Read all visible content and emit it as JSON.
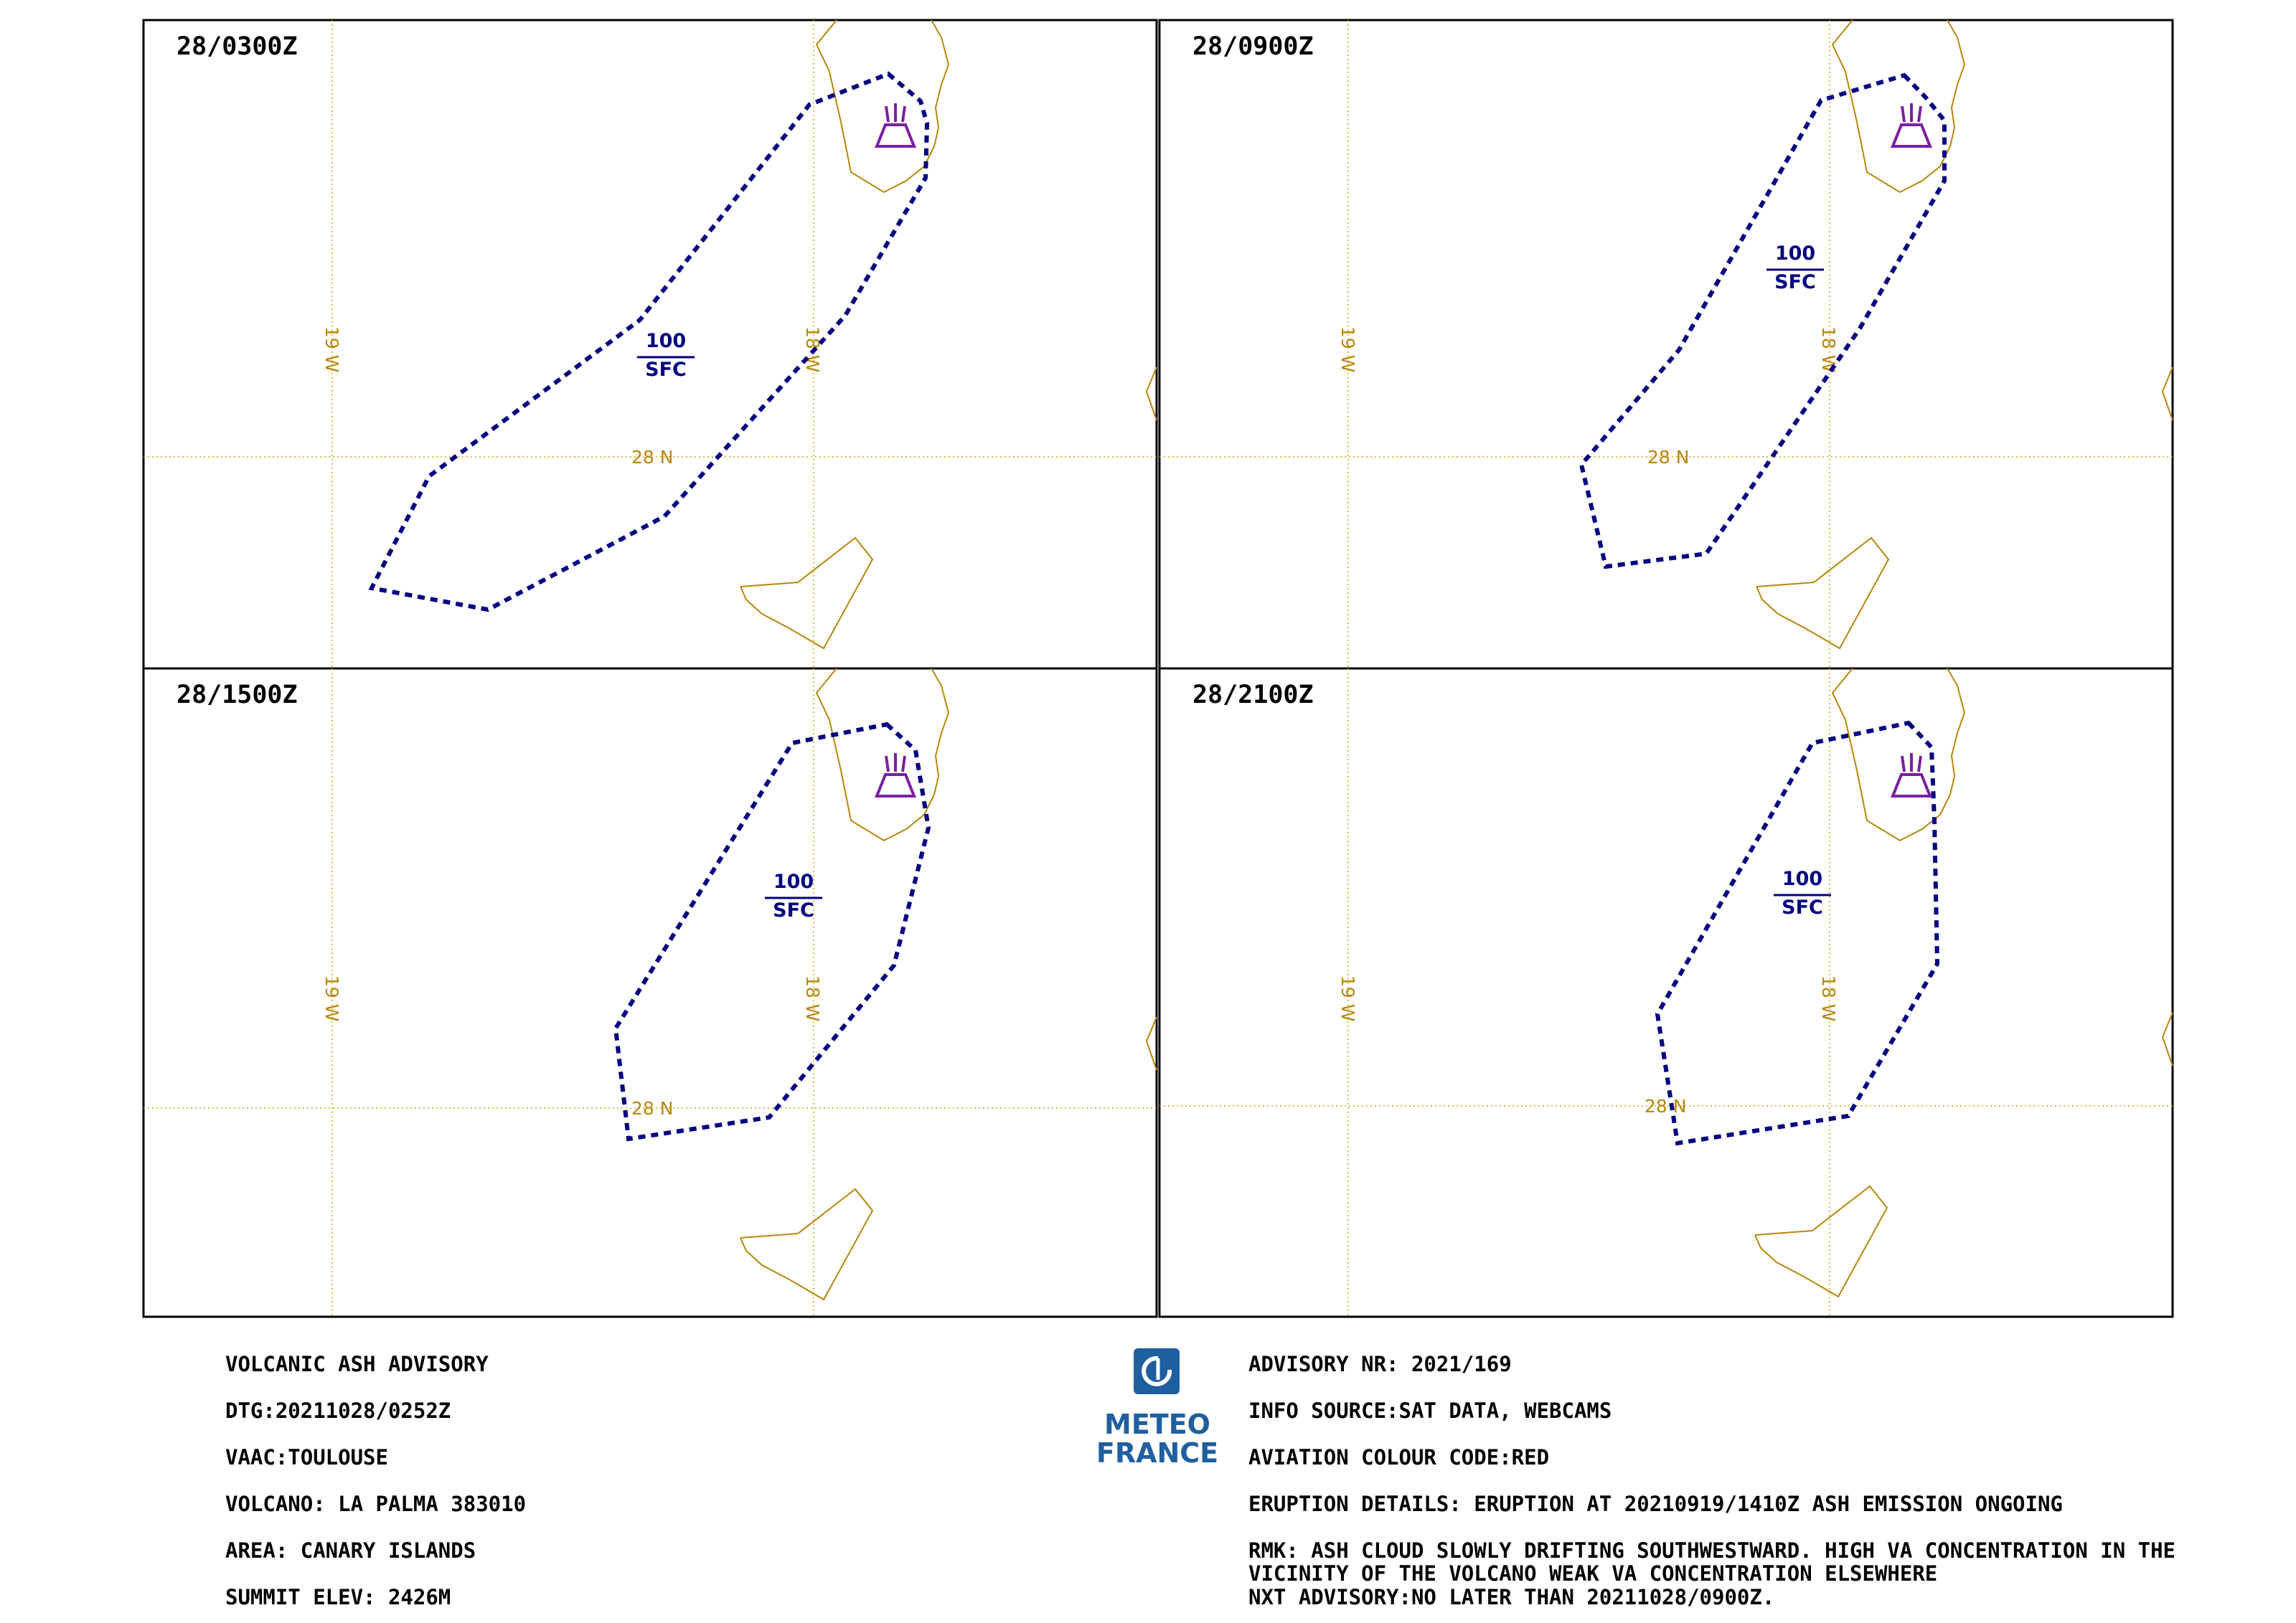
{
  "panels": [
    {
      "id": "p1",
      "title": "28/0300Z",
      "fl_top": "100",
      "fl_bottom": "SFC"
    },
    {
      "id": "p2",
      "title": "28/0900Z",
      "fl_top": "100",
      "fl_bottom": "SFC"
    },
    {
      "id": "p3",
      "title": "28/1500Z",
      "fl_top": "100",
      "fl_bottom": "SFC"
    },
    {
      "id": "p4",
      "title": "28/2100Z",
      "fl_top": "100",
      "fl_bottom": "SFC"
    }
  ],
  "grid_labels": {
    "lon_19": "19 W",
    "lon_18": "18 W",
    "lat_28": "28 N"
  },
  "colors": {
    "ash_outline": "#000080",
    "coastline": "#b8860b",
    "volcano": "#7b1fa2",
    "logo": "#1f5fa0"
  },
  "logo": {
    "line1": "METEO",
    "line2": "FRANCE",
    "icon": "meteo-france-logo-icon"
  },
  "advisory_left": [
    "VOLCANIC ASH ADVISORY",
    "DTG:20211028/0252Z",
    "VAAC:TOULOUSE",
    "VOLCANO: LA PALMA 383010",
    "AREA: CANARY ISLANDS",
    "SUMMIT ELEV: 2426M"
  ],
  "advisory_right": {
    "advisory_nr": "ADVISORY NR: 2021/169",
    "info_source": "INFO SOURCE:SAT DATA, WEBCAMS",
    "colour_code": "AVIATION COLOUR CODE:RED",
    "eruption": "ERUPTION DETAILS: ERUPTION AT 20210919/1410Z ASH EMISSION ONGOING",
    "rmk_line1": "RMK: ASH CLOUD SLOWLY DRIFTING SOUTHWESTWARD. HIGH VA CONCENTRATION IN THE",
    "rmk_line2": "VICINITY OF THE VOLCANO WEAK VA CONCENTRATION ELSEWHERE",
    "next": "NXT ADVISORY:NO LATER THAN 20211028/0900Z."
  }
}
